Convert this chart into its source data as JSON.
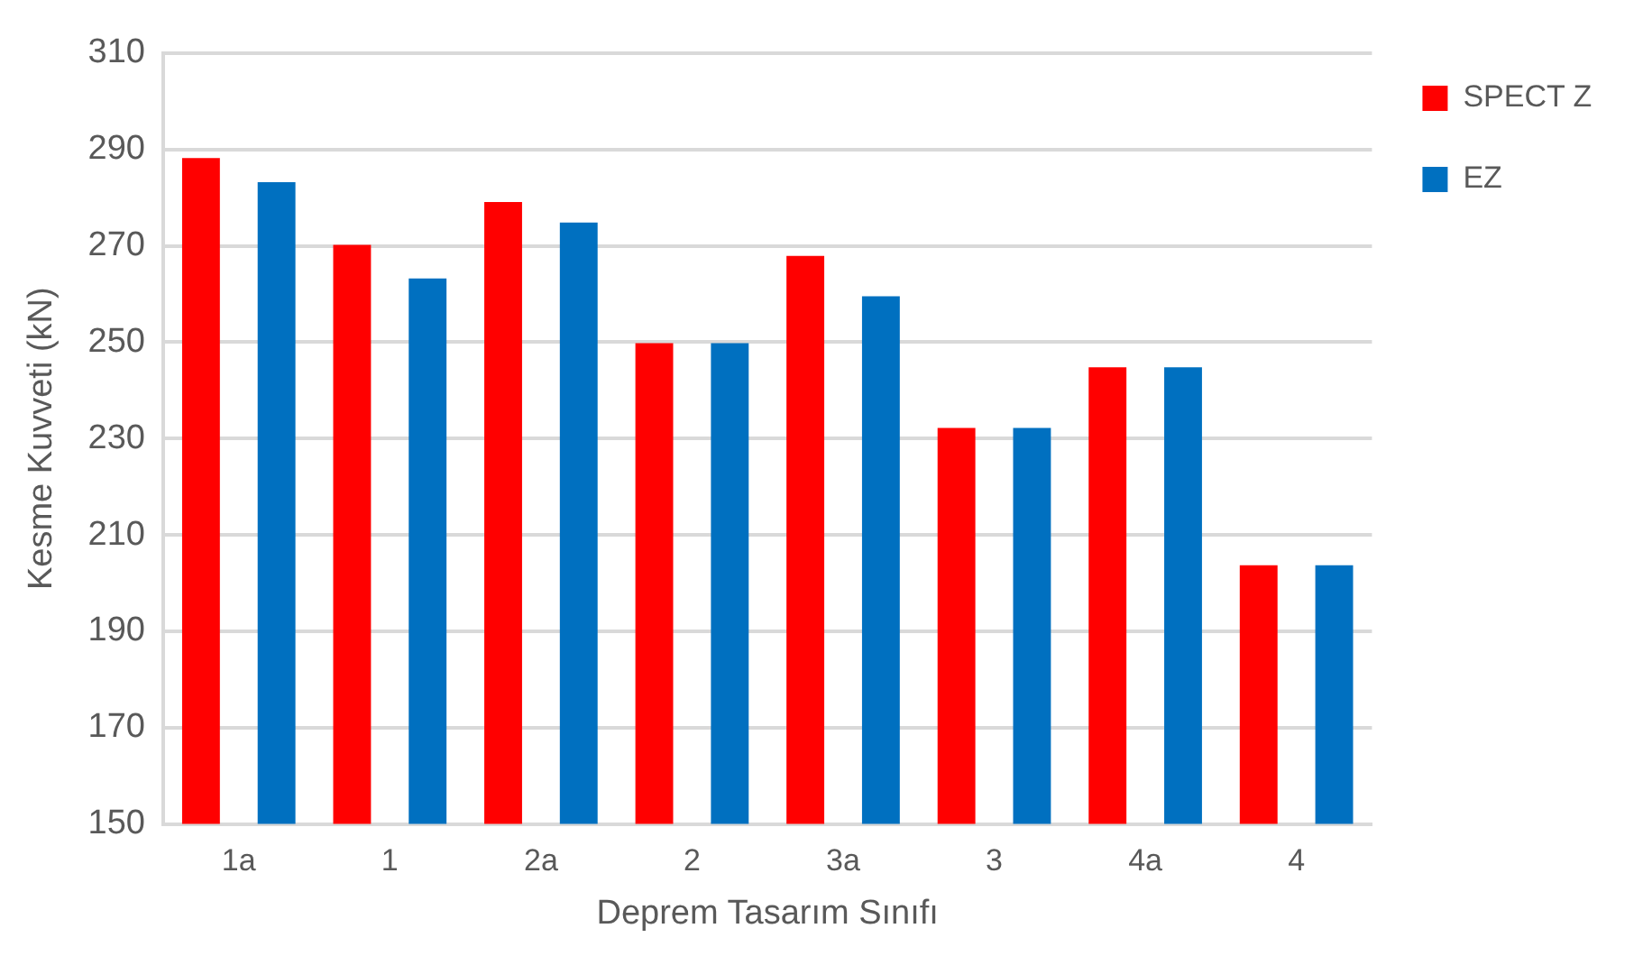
{
  "chart_data": {
    "type": "bar",
    "xlabel": "Deprem Tasarım Sınıfı",
    "ylabel": "Kesme Kuvveti (kN)",
    "categories": [
      "1a",
      "1",
      "2a",
      "2",
      "3a",
      "3",
      "4a",
      "4"
    ],
    "series": [
      {
        "name": "SPECT Z",
        "color": "#ff0000",
        "values": [
          288.2,
          270.2,
          279.1,
          249.8,
          267.9,
          232.2,
          244.8,
          203.7
        ]
      },
      {
        "name": "EZ",
        "color": "#0070c0",
        "values": [
          283.2,
          263.2,
          274.8,
          249.8,
          259.5,
          232.2,
          244.8,
          203.7
        ]
      }
    ],
    "ylim": [
      150,
      310
    ],
    "yticks": [
      150,
      170,
      190,
      210,
      230,
      250,
      270,
      290,
      310
    ],
    "grid": "y",
    "legend": "top right"
  }
}
